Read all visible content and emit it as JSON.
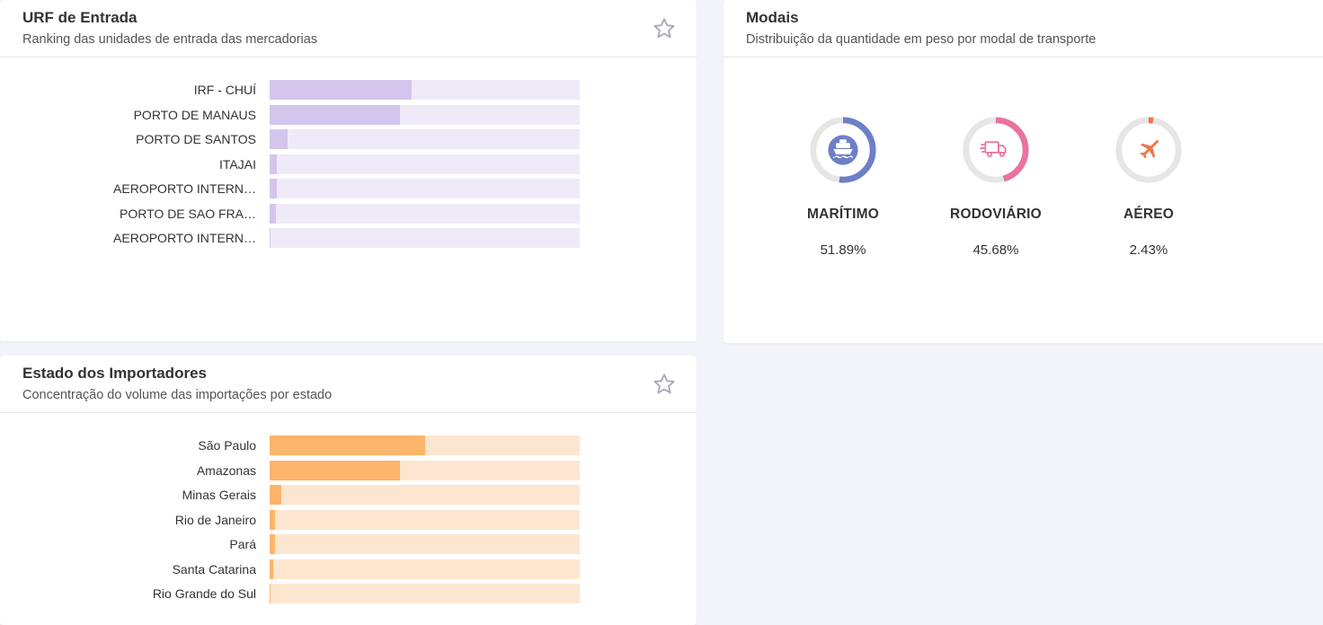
{
  "urf_card": {
    "title": "URF de Entrada",
    "subtitle": "Ranking das unidades de entrada das mercadorias",
    "bar_color": "#d4c5ec",
    "track_color": "#f0eaf8",
    "rows": [
      {
        "label": "IRF - CHUÍ",
        "value": 0.458
      },
      {
        "label": "PORTO DE MANAUS",
        "value": 0.42
      },
      {
        "label": "PORTO DE SANTOS",
        "value": 0.058
      },
      {
        "label": "ITAJAI",
        "value": 0.023
      },
      {
        "label": "AEROPORTO INTERN…",
        "value": 0.023
      },
      {
        "label": "PORTO DE SAO FRA…",
        "value": 0.02
      },
      {
        "label": "AEROPORTO INTERN…",
        "value": 0.004
      }
    ]
  },
  "estado_card": {
    "title": "Estado dos Importadores",
    "subtitle": "Concentração do volume das importações por estado",
    "bar_color": "#fdb46b",
    "track_color": "#fde6cf",
    "rows": [
      {
        "label": "São Paulo",
        "value": 0.5
      },
      {
        "label": "Amazonas",
        "value": 0.42
      },
      {
        "label": "Minas Gerais",
        "value": 0.037
      },
      {
        "label": "Rio de Janeiro",
        "value": 0.017
      },
      {
        "label": "Pará",
        "value": 0.017
      },
      {
        "label": "Santa Catarina",
        "value": 0.012
      },
      {
        "label": "Rio Grande do Sul",
        "value": 0.004
      }
    ]
  },
  "modais_card": {
    "title": "Modais",
    "subtitle": "Distribuição da quantidade em peso por modal de transporte",
    "items": [
      {
        "name": "MARÍTIMO",
        "percent": "51.89%",
        "value": 0.5189,
        "color": "#6e7fc7",
        "icon": "ship-icon"
      },
      {
        "name": "RODOVIÁRIO",
        "percent": "45.68%",
        "value": 0.4568,
        "color": "#e8739f",
        "icon": "truck-icon"
      },
      {
        "name": "AÉREO",
        "percent": "2.43%",
        "value": 0.0243,
        "color": "#f0764a",
        "icon": "airplane-icon"
      }
    ]
  }
}
